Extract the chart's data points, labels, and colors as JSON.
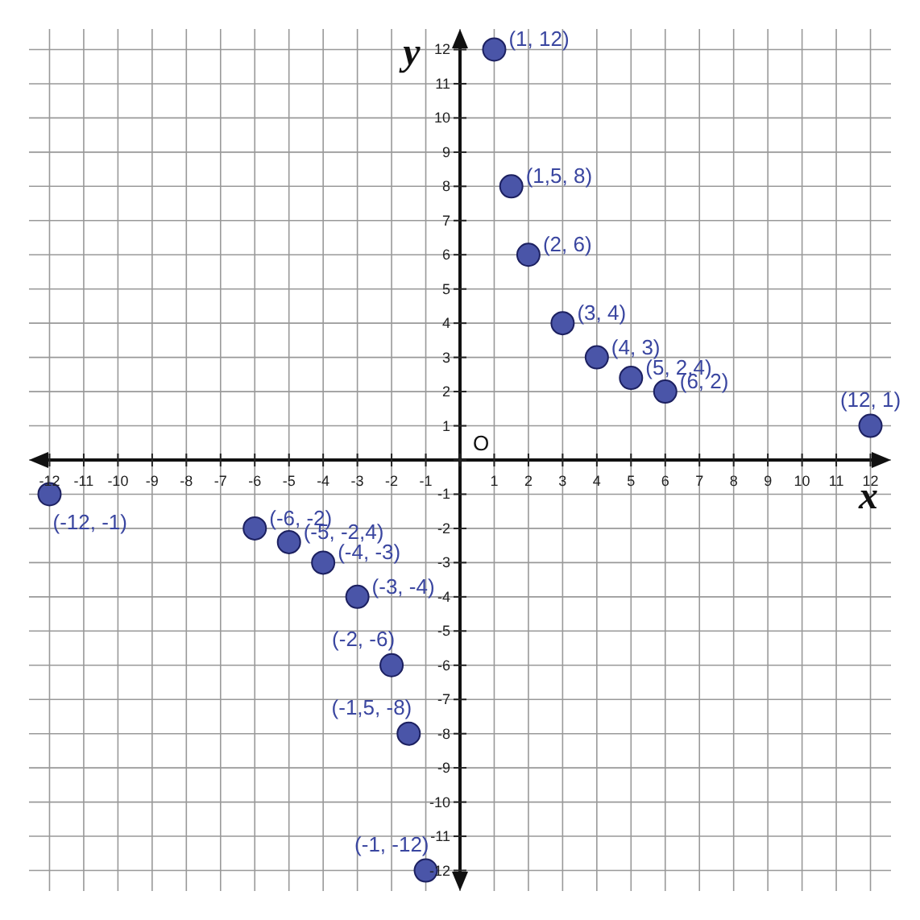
{
  "chart_data": {
    "type": "scatter",
    "xlabel": "x",
    "ylabel": "y",
    "annotations": [
      "O"
    ],
    "x": [
      1,
      1.5,
      2,
      3,
      4,
      5,
      6,
      12,
      -1,
      -1.5,
      -2,
      -3,
      -4,
      -5,
      -6,
      -12
    ],
    "series": [
      {
        "color": "#4a55a8",
        "values": [
          12,
          8,
          6,
          4,
          3,
          2.4,
          2,
          1,
          -12,
          -8,
          -6,
          -4,
          -3,
          -2.4,
          -2,
          -1
        ],
        "value_labels": [
          "(1, 12)",
          "(1,5, 8)",
          "(2, 6)",
          "(3, 4)",
          "(4, 3)",
          "(5, 2,4)",
          "(6, 2)",
          "(12, 1)",
          "(-1, -12)",
          "(-1,5, -8)",
          "(-2, -6)",
          "(-3, -4)",
          "(-4, -3)",
          "(-5, -2,4)",
          "(-6, -2)",
          "(-12, -1)"
        ]
      }
    ],
    "xlim": [
      -12.6,
      12.6
    ],
    "ylim": [
      -12.6,
      12.6
    ],
    "xticks": [
      -12,
      -11,
      -10,
      -9,
      -8,
      -7,
      -6,
      -5,
      -4,
      -3,
      -2,
      -1,
      {
        "value": 0,
        "label": null
      },
      1,
      2,
      3,
      4,
      5,
      6,
      7,
      8,
      9,
      10,
      11,
      12
    ],
    "yticks": [
      -12,
      -11,
      -10,
      -9,
      -8,
      -7,
      -6,
      -5,
      -4,
      -3,
      -2,
      -1,
      {
        "value": 0,
        "label": null
      },
      1,
      2,
      3,
      4,
      5,
      6,
      7,
      8,
      9,
      10,
      11,
      12
    ],
    "grid": true,
    "marker": "circle",
    "legend": false
  }
}
